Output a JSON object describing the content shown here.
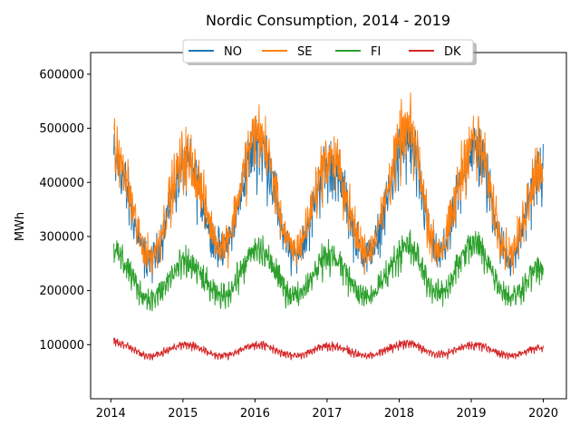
{
  "chart_data": {
    "type": "line",
    "title": "Nordic Consumption,  2014 - 2019",
    "xlabel": "",
    "ylabel": "MWh",
    "x_range": [
      "2014-01-01",
      "2019-12-31"
    ],
    "xlim": [
      2013.72,
      2020.32
    ],
    "ylim": [
      0,
      640000
    ],
    "x_ticks": [
      {
        "label": "2014",
        "value": 2014
      },
      {
        "label": "2015",
        "value": 2015
      },
      {
        "label": "2016",
        "value": 2016
      },
      {
        "label": "2017",
        "value": 2017
      },
      {
        "label": "2018",
        "value": 2018
      },
      {
        "label": "2019",
        "value": 2019
      },
      {
        "label": "2020",
        "value": 2020
      }
    ],
    "y_ticks": [
      {
        "label": "100000",
        "value": 100000
      },
      {
        "label": "200000",
        "value": 200000
      },
      {
        "label": "300000",
        "value": 300000
      },
      {
        "label": "400000",
        "value": 400000
      },
      {
        "label": "500000",
        "value": 500000
      },
      {
        "label": "600000",
        "value": 600000
      }
    ],
    "grid": false,
    "legend": {
      "placement": "top-center",
      "columns": 4,
      "shadow": true
    },
    "series": [
      {
        "name": "NO",
        "color": "#1f77b4",
        "approx_monthly_mean": [
          {
            "date": "2014-01",
            "value": 440000
          },
          {
            "date": "2014-07",
            "value": 255000
          },
          {
            "date": "2015-01",
            "value": 430000
          },
          {
            "date": "2015-07",
            "value": 275000
          },
          {
            "date": "2016-01",
            "value": 470000
          },
          {
            "date": "2016-07",
            "value": 265000
          },
          {
            "date": "2017-01",
            "value": 430000
          },
          {
            "date": "2017-07",
            "value": 265000
          },
          {
            "date": "2018-02",
            "value": 470000
          },
          {
            "date": "2018-07",
            "value": 265000
          },
          {
            "date": "2019-01",
            "value": 460000
          },
          {
            "date": "2019-07",
            "value": 260000
          },
          {
            "date": "2019-12",
            "value": 420000
          }
        ]
      },
      {
        "name": "SE",
        "color": "#ff7f0e",
        "approx_monthly_mean": [
          {
            "date": "2014-01",
            "value": 455000
          },
          {
            "date": "2014-07",
            "value": 265000
          },
          {
            "date": "2015-01",
            "value": 445000
          },
          {
            "date": "2015-07",
            "value": 285000
          },
          {
            "date": "2016-01",
            "value": 490000
          },
          {
            "date": "2016-07",
            "value": 275000
          },
          {
            "date": "2017-01",
            "value": 445000
          },
          {
            "date": "2017-07",
            "value": 275000
          },
          {
            "date": "2018-02",
            "value": 495000
          },
          {
            "date": "2018-07",
            "value": 275000
          },
          {
            "date": "2019-01",
            "value": 475000
          },
          {
            "date": "2019-07",
            "value": 270000
          },
          {
            "date": "2019-12",
            "value": 430000
          }
        ]
      },
      {
        "name": "FI",
        "color": "#2ca02c",
        "approx_monthly_mean": [
          {
            "date": "2014-01",
            "value": 270000
          },
          {
            "date": "2014-07",
            "value": 185000
          },
          {
            "date": "2015-01",
            "value": 250000
          },
          {
            "date": "2015-07",
            "value": 190000
          },
          {
            "date": "2016-01",
            "value": 275000
          },
          {
            "date": "2016-07",
            "value": 192000
          },
          {
            "date": "2017-01",
            "value": 265000
          },
          {
            "date": "2017-07",
            "value": 188000
          },
          {
            "date": "2018-02",
            "value": 280000
          },
          {
            "date": "2018-07",
            "value": 195000
          },
          {
            "date": "2019-01",
            "value": 285000
          },
          {
            "date": "2019-07",
            "value": 190000
          },
          {
            "date": "2019-12",
            "value": 240000
          }
        ]
      },
      {
        "name": "DK",
        "color": "#d62728",
        "approx_monthly_mean": [
          {
            "date": "2014-01",
            "value": 105000
          },
          {
            "date": "2014-07",
            "value": 80000
          },
          {
            "date": "2015-01",
            "value": 100000
          },
          {
            "date": "2015-07",
            "value": 80000
          },
          {
            "date": "2016-01",
            "value": 100000
          },
          {
            "date": "2016-07",
            "value": 80000
          },
          {
            "date": "2017-01",
            "value": 98000
          },
          {
            "date": "2017-07",
            "value": 80000
          },
          {
            "date": "2018-02",
            "value": 102000
          },
          {
            "date": "2018-07",
            "value": 82000
          },
          {
            "date": "2019-01",
            "value": 100000
          },
          {
            "date": "2019-07",
            "value": 80000
          },
          {
            "date": "2019-12",
            "value": 95000
          }
        ]
      }
    ]
  }
}
